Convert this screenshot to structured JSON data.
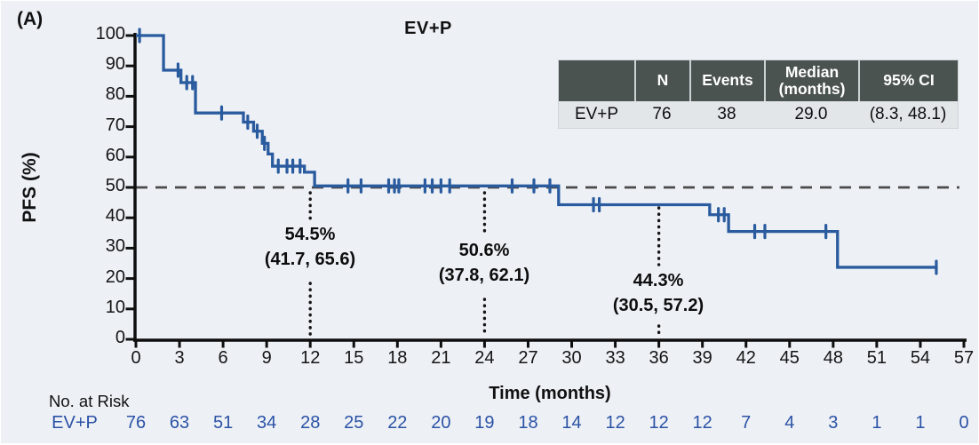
{
  "panel_label": "(A)",
  "title": "EV+P",
  "colors": {
    "background": "#edf1f6",
    "curve": "#2a5b9e",
    "at_risk_text": "#2b52a5",
    "axis": "#0e0e0e",
    "reference_dash": "#4a4a4a",
    "landmark_dots": "#161616",
    "table_header_bg": "#4b5351",
    "table_header_text": "#ffffff",
    "table_row_bg": "#e3e6e9"
  },
  "summary_table": {
    "headers": [
      "",
      "N",
      "Events",
      "Median\n(months)",
      "95% CI"
    ],
    "row": {
      "group": "EV+P",
      "n": "76",
      "events": "38",
      "median": "29.0",
      "ci": "(8.3, 48.1)"
    }
  },
  "annotations": [
    {
      "months": 12,
      "pct": "54.5%",
      "ci": "(41.7, 65.6)"
    },
    {
      "months": 24,
      "pct": "50.6%",
      "ci": "(37.8, 62.1)"
    },
    {
      "months": 36,
      "pct": "44.3%",
      "ci": "(30.5, 57.2)"
    }
  ],
  "x_axis": {
    "label": "Time (months)",
    "min": 0,
    "max": 57,
    "ticks": [
      0,
      3,
      6,
      9,
      12,
      15,
      18,
      21,
      24,
      27,
      30,
      33,
      36,
      39,
      42,
      45,
      48,
      51,
      54,
      57
    ]
  },
  "y_axis": {
    "label": "PFS (%)",
    "min": 0,
    "max": 100,
    "ticks": [
      0,
      10,
      20,
      30,
      40,
      50,
      60,
      70,
      80,
      90,
      100
    ]
  },
  "at_risk": {
    "label": "No. at Risk",
    "group": "EV+P",
    "values": [
      76,
      63,
      51,
      34,
      28,
      25,
      22,
      20,
      19,
      18,
      14,
      12,
      12,
      12,
      7,
      4,
      3,
      1,
      1,
      0
    ]
  },
  "chart_data": {
    "type": "line",
    "style": "kaplan-meier-step",
    "title": "EV+P",
    "xlabel": "Time (months)",
    "ylabel": "PFS (%)",
    "xlim": [
      0,
      57
    ],
    "ylim": [
      0,
      100
    ],
    "reference_line_y": 50,
    "n": 76,
    "events": 38,
    "median_months": 29.0,
    "median_ci": [
      8.3,
      48.1
    ],
    "landmarks": [
      {
        "t": 12,
        "pct": 54.5,
        "ci": [
          41.7,
          65.6
        ]
      },
      {
        "t": 24,
        "pct": 50.6,
        "ci": [
          37.8,
          62.1
        ]
      },
      {
        "t": 36,
        "pct": 44.3,
        "ci": [
          30.5,
          57.2
        ]
      }
    ],
    "series": [
      {
        "name": "EV+P",
        "steps": [
          [
            0,
            100
          ],
          [
            1.9,
            88.6
          ],
          [
            3.1,
            84.5
          ],
          [
            4.1,
            74.5
          ],
          [
            7.4,
            71.5
          ],
          [
            8.1,
            68.5
          ],
          [
            8.7,
            64.5
          ],
          [
            9.1,
            61
          ],
          [
            9.4,
            57
          ],
          [
            11.6,
            55
          ],
          [
            12.3,
            50.5
          ],
          [
            29.1,
            44.3
          ],
          [
            39.5,
            41
          ],
          [
            40.8,
            35.5
          ],
          [
            48.3,
            23.7
          ]
        ],
        "end_time": 55.2,
        "censors": [
          [
            0.25,
            100
          ],
          [
            2.9,
            88.6
          ],
          [
            3.5,
            84.5
          ],
          [
            3.9,
            84.5
          ],
          [
            5.9,
            74.5
          ],
          [
            7.7,
            71.5
          ],
          [
            8.35,
            68.5
          ],
          [
            8.85,
            64.5
          ],
          [
            9.8,
            57
          ],
          [
            10.4,
            57
          ],
          [
            10.8,
            57
          ],
          [
            11.3,
            57
          ],
          [
            14.6,
            50.5
          ],
          [
            15.5,
            50.5
          ],
          [
            17.4,
            50.5
          ],
          [
            17.8,
            50.5
          ],
          [
            18.1,
            50.5
          ],
          [
            19.9,
            50.5
          ],
          [
            20.4,
            50.5
          ],
          [
            21.0,
            50.5
          ],
          [
            21.6,
            50.5
          ],
          [
            25.9,
            50.5
          ],
          [
            27.4,
            50.5
          ],
          [
            28.5,
            50.5
          ],
          [
            31.5,
            44.3
          ],
          [
            31.9,
            44.3
          ],
          [
            40.1,
            41
          ],
          [
            40.5,
            41
          ],
          [
            42.6,
            35.5
          ],
          [
            43.3,
            35.5
          ],
          [
            47.5,
            35.5
          ],
          [
            55.1,
            23.7
          ]
        ]
      }
    ]
  }
}
